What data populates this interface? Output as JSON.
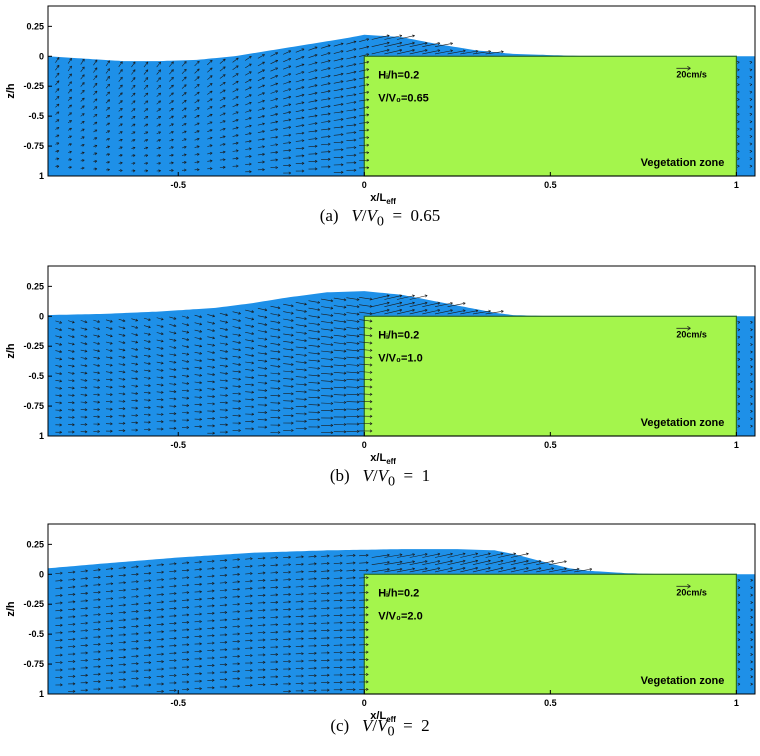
{
  "chart_data": [
    {
      "type": "vector-field",
      "caption_letter": "(a)",
      "caption_value": "0.65",
      "ratio_label": "V/V₀=0.65",
      "hi_label": "Hᵢ/h=0.2",
      "scale_label": "20cm/s",
      "zone_label": "Vegetation zone",
      "xlabel": "x/L",
      "xlabel_sub": "eff",
      "ylabel": "z/h",
      "xticks": [
        "-0.5",
        "0",
        "0.5",
        "1"
      ],
      "yticks": [
        "0.25",
        "0",
        "-0.25",
        "-0.5",
        "-0.75",
        "1"
      ],
      "xlim": [
        -0.85,
        1.05
      ],
      "ylim": [
        -1,
        0.42
      ],
      "vegetation_zone": [
        0,
        1
      ],
      "surface": {
        "x": [
          -0.85,
          -0.75,
          -0.65,
          -0.55,
          -0.45,
          -0.35,
          -0.25,
          -0.15,
          -0.05,
          0,
          0.1,
          0.2,
          0.3,
          0.4,
          0.5,
          0.6,
          0.7,
          0.8,
          0.9,
          1.0,
          1.05
        ],
        "z": [
          0.0,
          -0.02,
          -0.04,
          -0.04,
          -0.03,
          0.0,
          0.05,
          0.1,
          0.15,
          0.18,
          0.16,
          0.1,
          0.05,
          0.02,
          0.01,
          0.0,
          0.0,
          0.0,
          0.0,
          0.0,
          0.0
        ]
      },
      "flow": {
        "mode": "up",
        "crest_x": 0.0
      }
    },
    {
      "type": "vector-field",
      "caption_letter": "(b)",
      "caption_value": "1",
      "ratio_label": "V/V₀=1.0",
      "hi_label": "Hᵢ/h=0.2",
      "scale_label": "20cm/s",
      "zone_label": "Vegetation zone",
      "xlabel": "x/L",
      "xlabel_sub": "eff",
      "ylabel": "z/h",
      "xticks": [
        "-0.5",
        "0",
        "0.5",
        "1"
      ],
      "yticks": [
        "0.25",
        "0",
        "-0.25",
        "-0.5",
        "-0.75",
        "1"
      ],
      "xlim": [
        -0.85,
        1.05
      ],
      "ylim": [
        -1,
        0.42
      ],
      "vegetation_zone": [
        0,
        1
      ],
      "surface": {
        "x": [
          -0.85,
          -0.7,
          -0.55,
          -0.4,
          -0.3,
          -0.2,
          -0.1,
          0,
          0.1,
          0.2,
          0.3,
          0.35,
          0.4,
          0.5,
          0.6,
          0.8,
          1.0,
          1.05
        ],
        "z": [
          0.01,
          0.02,
          0.04,
          0.07,
          0.11,
          0.16,
          0.2,
          0.21,
          0.18,
          0.12,
          0.06,
          0.03,
          0.01,
          0.0,
          0.0,
          0.0,
          0.0,
          0.0
        ]
      },
      "flow": {
        "mode": "down",
        "crest_x": 0.05
      }
    },
    {
      "type": "vector-field",
      "caption_letter": "(c)",
      "caption_value": "2",
      "ratio_label": "V/V₀=2.0",
      "hi_label": "Hᵢ/h=0.2",
      "scale_label": "20cm/s",
      "zone_label": "Vegetation zone",
      "xlabel": "x/L",
      "xlabel_sub": "eff",
      "ylabel": "z/h",
      "xticks": [
        "-0.5",
        "0",
        "0.5",
        "1"
      ],
      "yticks": [
        "0.25",
        "0",
        "-0.25",
        "-0.5",
        "-0.75",
        "1"
      ],
      "xlim": [
        -0.85,
        1.05
      ],
      "ylim": [
        -1,
        0.42
      ],
      "vegetation_zone": [
        0,
        1
      ],
      "surface": {
        "x": [
          -0.85,
          -0.7,
          -0.5,
          -0.3,
          -0.1,
          0.1,
          0.25,
          0.35,
          0.4,
          0.45,
          0.5,
          0.55,
          0.6,
          0.7,
          0.8,
          0.9,
          1.0,
          1.05
        ],
        "z": [
          0.05,
          0.09,
          0.14,
          0.18,
          0.2,
          0.21,
          0.21,
          0.2,
          0.17,
          0.13,
          0.09,
          0.05,
          0.03,
          0.01,
          0.0,
          0.0,
          0.0,
          0.0
        ]
      },
      "flow": {
        "mode": "flat",
        "crest_x": 0.3
      }
    }
  ],
  "caption_prefix_V": "V",
  "caption_prefix_V0": "V",
  "caption_sub_0": "0",
  "caption_equals": "=",
  "colors": {
    "water": "#1e90e8",
    "vegetation": "#a4f54c",
    "vegetation_border": "#2a6a2a",
    "axis": "#000000",
    "arrow": "#1a1a1a"
  }
}
